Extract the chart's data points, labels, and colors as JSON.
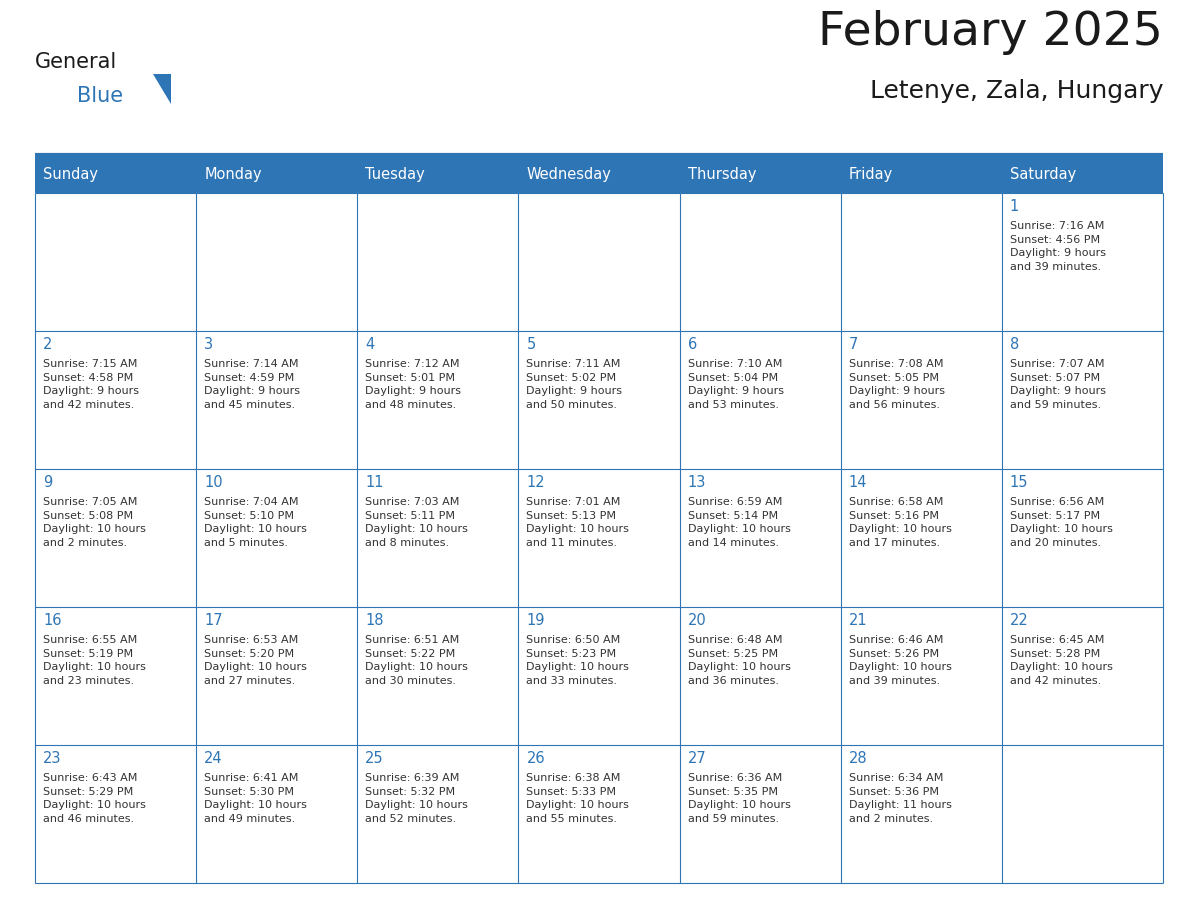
{
  "title": "February 2025",
  "subtitle": "Letenye, Zala, Hungary",
  "header_color": "#2E75B6",
  "header_text_color": "#FFFFFF",
  "cell_bg_color": "#FFFFFF",
  "border_color": "#2E75B6",
  "title_color": "#1a1a1a",
  "text_color": "#333333",
  "day_number_color": "#2E75B6",
  "days_of_week": [
    "Sunday",
    "Monday",
    "Tuesday",
    "Wednesday",
    "Thursday",
    "Friday",
    "Saturday"
  ],
  "weeks": [
    [
      {
        "day": null,
        "info": null
      },
      {
        "day": null,
        "info": null
      },
      {
        "day": null,
        "info": null
      },
      {
        "day": null,
        "info": null
      },
      {
        "day": null,
        "info": null
      },
      {
        "day": null,
        "info": null
      },
      {
        "day": 1,
        "info": "Sunrise: 7:16 AM\nSunset: 4:56 PM\nDaylight: 9 hours\nand 39 minutes."
      }
    ],
    [
      {
        "day": 2,
        "info": "Sunrise: 7:15 AM\nSunset: 4:58 PM\nDaylight: 9 hours\nand 42 minutes."
      },
      {
        "day": 3,
        "info": "Sunrise: 7:14 AM\nSunset: 4:59 PM\nDaylight: 9 hours\nand 45 minutes."
      },
      {
        "day": 4,
        "info": "Sunrise: 7:12 AM\nSunset: 5:01 PM\nDaylight: 9 hours\nand 48 minutes."
      },
      {
        "day": 5,
        "info": "Sunrise: 7:11 AM\nSunset: 5:02 PM\nDaylight: 9 hours\nand 50 minutes."
      },
      {
        "day": 6,
        "info": "Sunrise: 7:10 AM\nSunset: 5:04 PM\nDaylight: 9 hours\nand 53 minutes."
      },
      {
        "day": 7,
        "info": "Sunrise: 7:08 AM\nSunset: 5:05 PM\nDaylight: 9 hours\nand 56 minutes."
      },
      {
        "day": 8,
        "info": "Sunrise: 7:07 AM\nSunset: 5:07 PM\nDaylight: 9 hours\nand 59 minutes."
      }
    ],
    [
      {
        "day": 9,
        "info": "Sunrise: 7:05 AM\nSunset: 5:08 PM\nDaylight: 10 hours\nand 2 minutes."
      },
      {
        "day": 10,
        "info": "Sunrise: 7:04 AM\nSunset: 5:10 PM\nDaylight: 10 hours\nand 5 minutes."
      },
      {
        "day": 11,
        "info": "Sunrise: 7:03 AM\nSunset: 5:11 PM\nDaylight: 10 hours\nand 8 minutes."
      },
      {
        "day": 12,
        "info": "Sunrise: 7:01 AM\nSunset: 5:13 PM\nDaylight: 10 hours\nand 11 minutes."
      },
      {
        "day": 13,
        "info": "Sunrise: 6:59 AM\nSunset: 5:14 PM\nDaylight: 10 hours\nand 14 minutes."
      },
      {
        "day": 14,
        "info": "Sunrise: 6:58 AM\nSunset: 5:16 PM\nDaylight: 10 hours\nand 17 minutes."
      },
      {
        "day": 15,
        "info": "Sunrise: 6:56 AM\nSunset: 5:17 PM\nDaylight: 10 hours\nand 20 minutes."
      }
    ],
    [
      {
        "day": 16,
        "info": "Sunrise: 6:55 AM\nSunset: 5:19 PM\nDaylight: 10 hours\nand 23 minutes."
      },
      {
        "day": 17,
        "info": "Sunrise: 6:53 AM\nSunset: 5:20 PM\nDaylight: 10 hours\nand 27 minutes."
      },
      {
        "day": 18,
        "info": "Sunrise: 6:51 AM\nSunset: 5:22 PM\nDaylight: 10 hours\nand 30 minutes."
      },
      {
        "day": 19,
        "info": "Sunrise: 6:50 AM\nSunset: 5:23 PM\nDaylight: 10 hours\nand 33 minutes."
      },
      {
        "day": 20,
        "info": "Sunrise: 6:48 AM\nSunset: 5:25 PM\nDaylight: 10 hours\nand 36 minutes."
      },
      {
        "day": 21,
        "info": "Sunrise: 6:46 AM\nSunset: 5:26 PM\nDaylight: 10 hours\nand 39 minutes."
      },
      {
        "day": 22,
        "info": "Sunrise: 6:45 AM\nSunset: 5:28 PM\nDaylight: 10 hours\nand 42 minutes."
      }
    ],
    [
      {
        "day": 23,
        "info": "Sunrise: 6:43 AM\nSunset: 5:29 PM\nDaylight: 10 hours\nand 46 minutes."
      },
      {
        "day": 24,
        "info": "Sunrise: 6:41 AM\nSunset: 5:30 PM\nDaylight: 10 hours\nand 49 minutes."
      },
      {
        "day": 25,
        "info": "Sunrise: 6:39 AM\nSunset: 5:32 PM\nDaylight: 10 hours\nand 52 minutes."
      },
      {
        "day": 26,
        "info": "Sunrise: 6:38 AM\nSunset: 5:33 PM\nDaylight: 10 hours\nand 55 minutes."
      },
      {
        "day": 27,
        "info": "Sunrise: 6:36 AM\nSunset: 5:35 PM\nDaylight: 10 hours\nand 59 minutes."
      },
      {
        "day": 28,
        "info": "Sunrise: 6:34 AM\nSunset: 5:36 PM\nDaylight: 11 hours\nand 2 minutes."
      },
      {
        "day": null,
        "info": null
      }
    ]
  ],
  "logo_text_general": "General",
  "logo_text_blue": "Blue",
  "logo_color_general": "#1a1a1a",
  "logo_color_blue": "#2E75B6",
  "logo_triangle_color": "#2E75B6",
  "fig_width": 11.88,
  "fig_height": 9.18,
  "dpi": 100
}
